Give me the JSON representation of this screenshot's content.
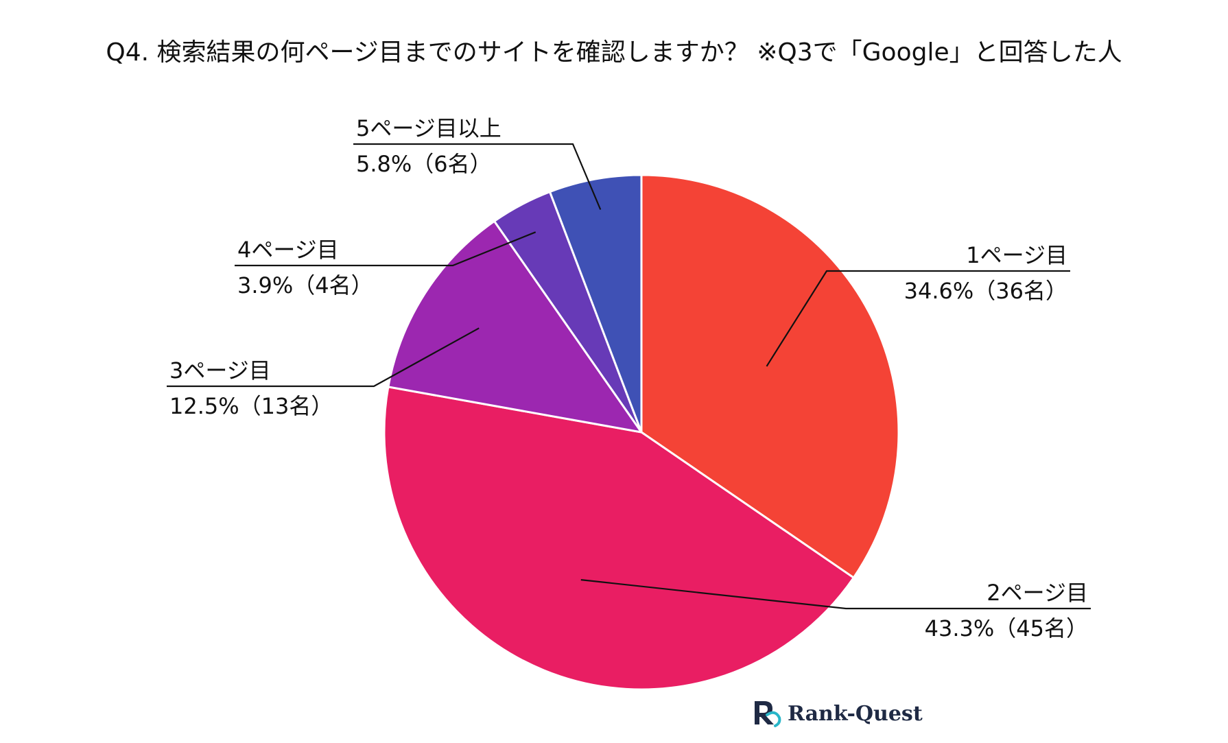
{
  "chart_data": {
    "type": "pie",
    "title": "Q4. 検索結果の何ページ目までのサイトを確認しますか？ ※Q3で「Google」と回答した人",
    "slices": [
      {
        "label": "1ページ目",
        "value_text": "34.6%（36名）",
        "percent": 34.6,
        "count": 36,
        "color": "#F44336"
      },
      {
        "label": "2ページ目",
        "value_text": "43.3%（45名）",
        "percent": 43.3,
        "count": 45,
        "color": "#E91E63"
      },
      {
        "label": "3ページ目",
        "value_text": "12.5%（13名）",
        "percent": 12.5,
        "count": 13,
        "color": "#9C27B0"
      },
      {
        "label": "4ページ目",
        "value_text": "3.9%（4名）",
        "percent": 3.9,
        "count": 4,
        "color": "#673AB7"
      },
      {
        "label": "5ページ目以上",
        "value_text": "5.8%（6名）",
        "percent": 5.8,
        "count": 6,
        "color": "#3F51B5"
      }
    ],
    "start_angle": "12 o'clock",
    "direction": "clockwise"
  },
  "branding": {
    "name": "Rank-Quest",
    "logo_icon": "rank-quest-logo-icon",
    "logo_colors": [
      "#1f2a44",
      "#29b6c9"
    ]
  }
}
